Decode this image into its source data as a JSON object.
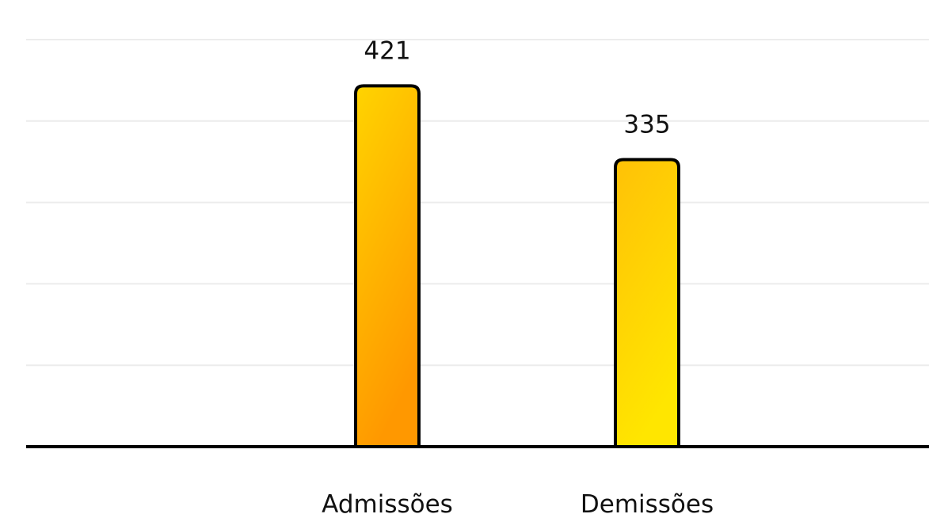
{
  "chart_data": {
    "type": "bar",
    "categories": [
      "Admissões",
      "Demissões"
    ],
    "values": [
      421,
      335
    ],
    "title": "",
    "xlabel": "",
    "ylabel": "",
    "ylim": [
      0,
      475
    ],
    "grid": true,
    "legend": "none",
    "gradients": [
      [
        "#ffd400",
        "#ff9800"
      ],
      [
        "#ffc107",
        "#ffe600"
      ]
    ]
  }
}
